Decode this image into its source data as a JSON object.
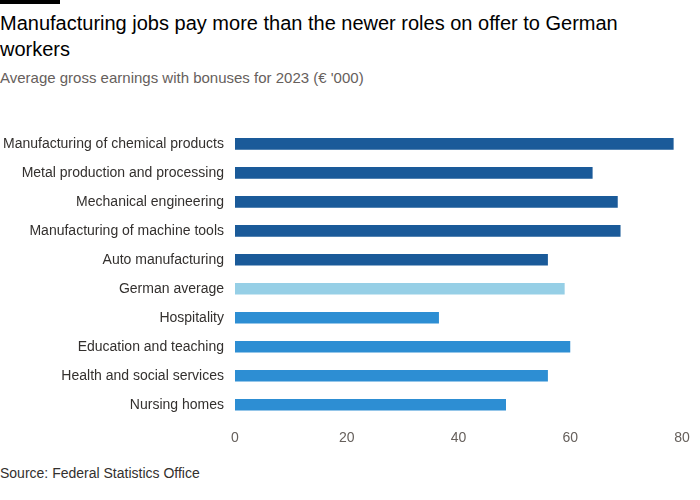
{
  "chart_data": {
    "type": "bar",
    "title": "Manufacturing jobs pay more than the newer roles on offer to German workers",
    "subtitle": "Average gross earnings with bonuses for 2023 (€ '000)",
    "source": "Source: Federal Statistics Office",
    "orientation": "horizontal",
    "categories": [
      "Manufacturing of chemical products",
      "Metal production and processing",
      "Mechanical engineering",
      "Manufacturing of machine tools",
      "Auto manufacturing",
      "German average",
      "Hospitality",
      "Education and teaching",
      "Health and social services",
      "Nursing homes"
    ],
    "values": [
      78.5,
      64,
      68.5,
      69,
      56,
      59,
      36.5,
      60,
      56,
      48.5
    ],
    "colors": [
      "#1a5a99",
      "#1a5a99",
      "#1a5a99",
      "#1a5a99",
      "#1a5a99",
      "#96cfe6",
      "#2d8ed3",
      "#2d8ed3",
      "#2d8ed3",
      "#2d8ed3"
    ],
    "xlim": [
      0,
      80
    ],
    "xticks": [
      0,
      20,
      40,
      60,
      80
    ],
    "grid": false
  }
}
